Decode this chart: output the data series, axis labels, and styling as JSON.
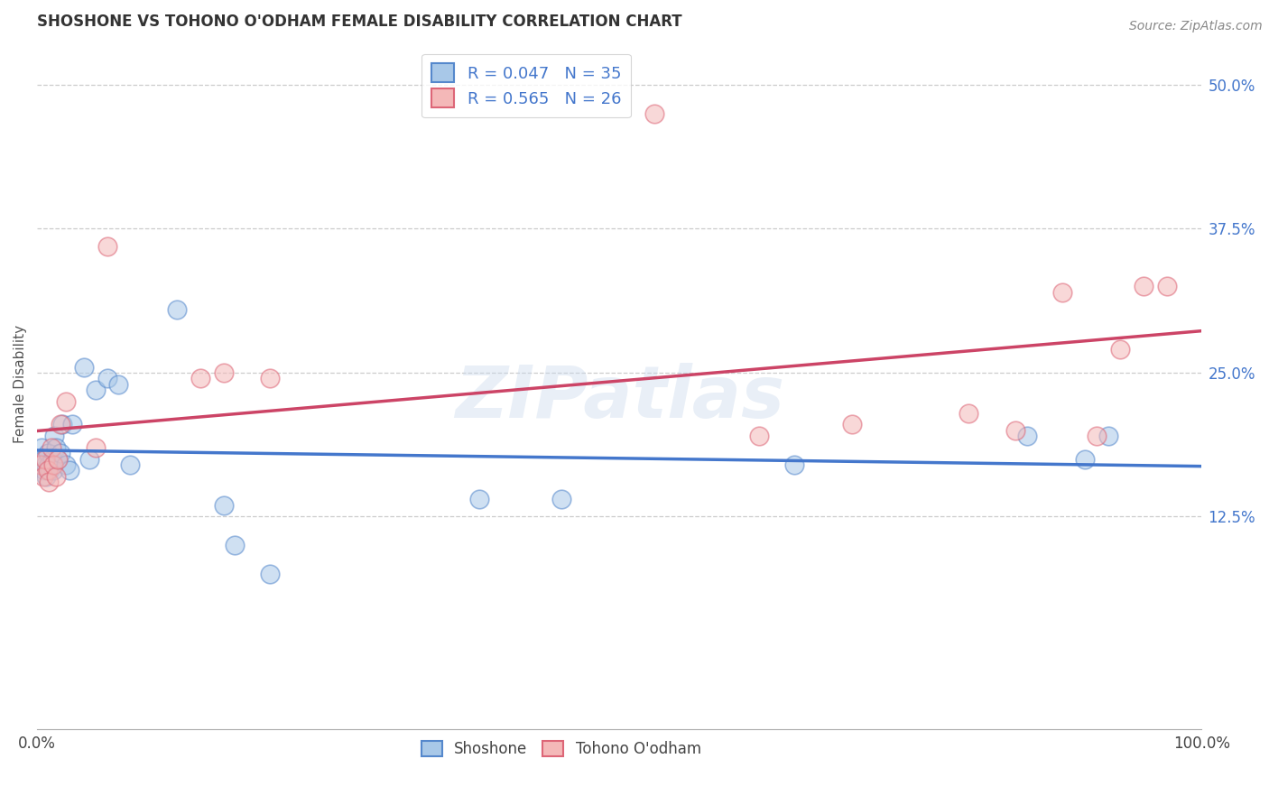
{
  "title": "SHOSHONE VS TOHONO O'ODHAM FEMALE DISABILITY CORRELATION CHART",
  "source": "Source: ZipAtlas.com",
  "ylabel": "Female Disability",
  "background_color": "#ffffff",
  "watermark_text": "ZIPatlas",
  "shoshone_fill": "#a8c8e8",
  "tohono_fill": "#f4b8b8",
  "shoshone_edge": "#5588cc",
  "tohono_edge": "#dd6677",
  "shoshone_line": "#4477cc",
  "tohono_line": "#cc4466",
  "shoshone_R": 0.047,
  "shoshone_N": 35,
  "tohono_R": 0.565,
  "tohono_N": 26,
  "legend_label_1": "Shoshone",
  "legend_label_2": "Tohono O'odham",
  "xlim": [
    0,
    1.0
  ],
  "ylim": [
    -0.06,
    0.54
  ],
  "yticks": [
    0.125,
    0.25,
    0.375,
    0.5
  ],
  "ytick_labels": [
    "12.5%",
    "25.0%",
    "37.5%",
    "50.0%"
  ],
  "xticks": [
    0.0,
    1.0
  ],
  "xtick_labels": [
    "0.0%",
    "100.0%"
  ],
  "shoshone_x": [
    0.002,
    0.004,
    0.005,
    0.006,
    0.007,
    0.008,
    0.009,
    0.01,
    0.011,
    0.013,
    0.014,
    0.015,
    0.016,
    0.018,
    0.02,
    0.022,
    0.025,
    0.028,
    0.03,
    0.04,
    0.045,
    0.05,
    0.06,
    0.07,
    0.08,
    0.12,
    0.16,
    0.17,
    0.2,
    0.38,
    0.45,
    0.65,
    0.85,
    0.9,
    0.92
  ],
  "shoshone_y": [
    0.175,
    0.185,
    0.175,
    0.165,
    0.17,
    0.16,
    0.18,
    0.17,
    0.165,
    0.175,
    0.165,
    0.195,
    0.185,
    0.175,
    0.18,
    0.205,
    0.17,
    0.165,
    0.205,
    0.255,
    0.175,
    0.235,
    0.245,
    0.24,
    0.17,
    0.305,
    0.135,
    0.1,
    0.075,
    0.14,
    0.14,
    0.17,
    0.195,
    0.175,
    0.195
  ],
  "tohono_x": [
    0.003,
    0.005,
    0.007,
    0.009,
    0.01,
    0.012,
    0.014,
    0.016,
    0.018,
    0.02,
    0.025,
    0.05,
    0.06,
    0.14,
    0.16,
    0.2,
    0.53,
    0.62,
    0.7,
    0.8,
    0.84,
    0.88,
    0.91,
    0.93,
    0.95,
    0.97
  ],
  "tohono_y": [
    0.17,
    0.16,
    0.175,
    0.165,
    0.155,
    0.185,
    0.17,
    0.16,
    0.175,
    0.205,
    0.225,
    0.185,
    0.36,
    0.245,
    0.25,
    0.245,
    0.475,
    0.195,
    0.205,
    0.215,
    0.2,
    0.32,
    0.195,
    0.27,
    0.325,
    0.325
  ]
}
